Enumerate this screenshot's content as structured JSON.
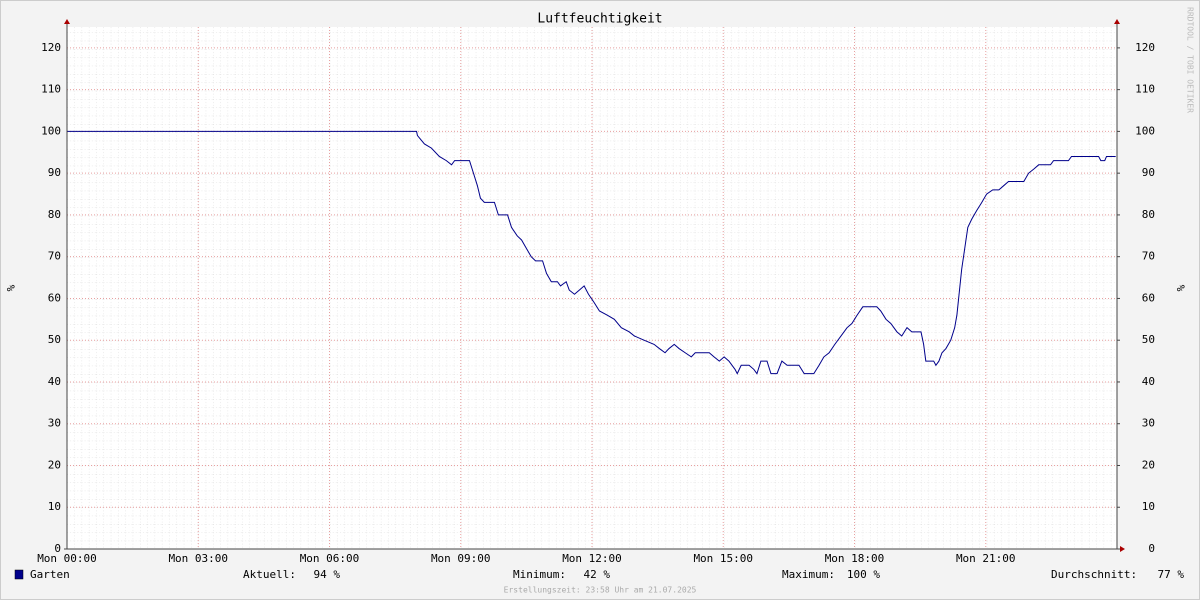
{
  "chart_data": {
    "type": "line",
    "title": "Luftfeuchtigkeit",
    "ylabel": "%",
    "y2label": "%",
    "xlim": [
      0,
      24
    ],
    "xticks": [
      {
        "value": 0,
        "label": "Mon 00:00"
      },
      {
        "value": 3,
        "label": "Mon 03:00"
      },
      {
        "value": 6,
        "label": "Mon 06:00"
      },
      {
        "value": 9,
        "label": "Mon 09:00"
      },
      {
        "value": 12,
        "label": "Mon 12:00"
      },
      {
        "value": 15,
        "label": "Mon 15:00"
      },
      {
        "value": 18,
        "label": "Mon 18:00"
      },
      {
        "value": 21,
        "label": "Mon 21:00"
      }
    ],
    "ylim": [
      0,
      125
    ],
    "yticks": [
      0,
      10,
      20,
      30,
      40,
      50,
      60,
      70,
      80,
      90,
      100,
      110,
      120
    ],
    "y2lim": [
      0,
      125
    ],
    "y2ticks": [
      0,
      10,
      20,
      30,
      40,
      50,
      60,
      70,
      80,
      90,
      100,
      110,
      120
    ],
    "grid": true,
    "x": [
      0,
      7.99,
      8.01,
      8.17,
      8.33,
      8.51,
      8.67,
      8.79,
      8.86,
      9.2,
      9.29,
      9.38,
      9.45,
      9.54,
      9.77,
      9.86,
      10.07,
      10.16,
      10.29,
      10.39,
      10.5,
      10.61,
      10.71,
      10.87,
      10.96,
      11.07,
      11.21,
      11.28,
      11.41,
      11.48,
      11.6,
      11.71,
      11.82,
      11.92,
      12.05,
      12.17,
      12.35,
      12.51,
      12.67,
      12.85,
      12.97,
      13.19,
      13.42,
      13.54,
      13.67,
      13.76,
      13.88,
      13.99,
      14.13,
      14.27,
      14.36,
      14.68,
      14.79,
      14.91,
      15.02,
      15.13,
      15.27,
      15.32,
      15.41,
      15.59,
      15.7,
      15.77,
      15.86,
      16.0,
      16.09,
      16.23,
      16.34,
      16.46,
      16.73,
      16.85,
      17.07,
      17.19,
      17.3,
      17.42,
      17.55,
      17.69,
      17.83,
      17.94,
      18.06,
      18.19,
      18.51,
      18.6,
      18.72,
      18.83,
      18.97,
      19.08,
      19.2,
      19.31,
      19.52,
      19.58,
      19.63,
      19.81,
      19.86,
      19.93,
      20.0,
      20.09,
      20.2,
      20.29,
      20.34,
      20.41,
      20.45,
      20.52,
      20.59,
      20.68,
      20.79,
      20.91,
      21.02,
      21.16,
      21.3,
      21.41,
      21.52,
      21.87,
      21.98,
      22.1,
      22.21,
      22.48,
      22.55,
      22.89,
      22.96,
      23.58,
      23.63,
      23.72,
      23.76,
      23.97
    ],
    "series": [
      {
        "name": "Garten",
        "color": "#00008b",
        "values": [
          100,
          100,
          99,
          97,
          96,
          94,
          93,
          92,
          93,
          93,
          90,
          87,
          84,
          83,
          83,
          80,
          80,
          77,
          75,
          74,
          72,
          70,
          69,
          69,
          66,
          64,
          64,
          63,
          64,
          62,
          61,
          62,
          63,
          61,
          59,
          57,
          56,
          55,
          53,
          52,
          51,
          50,
          49,
          48,
          47,
          48,
          49,
          48,
          47,
          46,
          47,
          47,
          46,
          45,
          46,
          45,
          43,
          42,
          44,
          44,
          43,
          42,
          45,
          45,
          42,
          42,
          45,
          44,
          44,
          42,
          42,
          44,
          46,
          47,
          49,
          51,
          53,
          54,
          56,
          58,
          58,
          57,
          55,
          54,
          52,
          51,
          53,
          52,
          52,
          49,
          45,
          45,
          44,
          45,
          47,
          48,
          50,
          53,
          56,
          63,
          67,
          72,
          77,
          79,
          81,
          83,
          85,
          86,
          86,
          87,
          88,
          88,
          90,
          91,
          92,
          92,
          93,
          93,
          94,
          94,
          93,
          93,
          94,
          94
        ]
      }
    ],
    "stats": [
      {
        "label": "Aktuell:",
        "value": "94 %"
      },
      {
        "label": "Minimum:",
        "value": "42 %"
      },
      {
        "label": "Maximum:",
        "value": "100 %"
      },
      {
        "label": "Durchschnitt:",
        "value": "77 %"
      }
    ],
    "footer": "Erstellungszeit: 23:58 Uhr am 21.07.2025",
    "watermark": "RRDTOOL / TOBI OETIKER"
  }
}
